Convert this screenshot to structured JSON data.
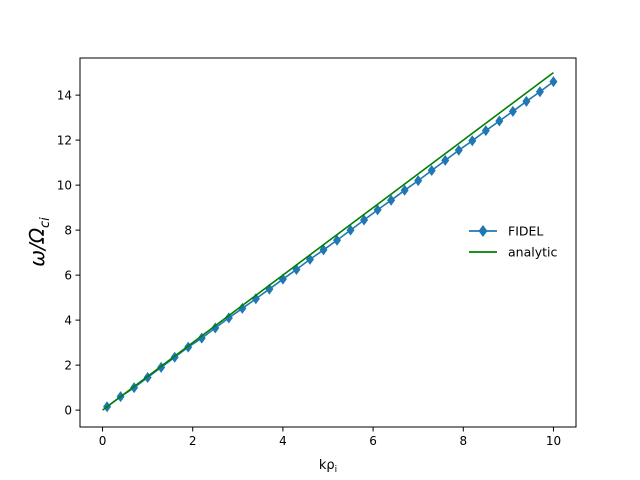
{
  "chart_data": {
    "type": "line",
    "title": "",
    "xlabel": "kρ",
    "xlabel_sub": "i",
    "ylabel": "ω/Ω",
    "ylabel_sub": "ci",
    "xlim": [
      -0.5,
      10.5
    ],
    "ylim": [
      -0.75,
      15.65
    ],
    "xticks": [
      0,
      2,
      4,
      6,
      8,
      10
    ],
    "yticks": [
      0,
      2,
      4,
      6,
      8,
      10,
      12,
      14
    ],
    "grid": false,
    "legend_position": "center-right",
    "series": [
      {
        "name": "FIDEL",
        "color": "#1f77b4",
        "marker": "diamond",
        "x": [
          0.1,
          0.4,
          0.7,
          1.0,
          1.3,
          1.6,
          1.9,
          2.2,
          2.5,
          2.8,
          3.1,
          3.4,
          3.7,
          4.0,
          4.3,
          4.6,
          4.9,
          5.2,
          5.5,
          5.8,
          6.1,
          6.4,
          6.7,
          7.0,
          7.3,
          7.6,
          7.9,
          8.2,
          8.5,
          8.8,
          9.1,
          9.4,
          9.7,
          10.0
        ],
        "y": [
          0.15,
          0.6,
          1.0,
          1.45,
          1.9,
          2.35,
          2.8,
          3.2,
          3.65,
          4.1,
          4.52,
          4.95,
          5.38,
          5.82,
          6.25,
          6.7,
          7.12,
          7.55,
          8.0,
          8.45,
          8.9,
          9.33,
          9.77,
          10.2,
          10.65,
          11.1,
          11.55,
          11.97,
          12.42,
          12.85,
          13.28,
          13.72,
          14.15,
          14.6
        ]
      },
      {
        "name": "analytic",
        "color": "#008000",
        "marker": "none",
        "x": [
          0.0,
          10.0
        ],
        "y": [
          0.0,
          15.0
        ]
      }
    ]
  }
}
